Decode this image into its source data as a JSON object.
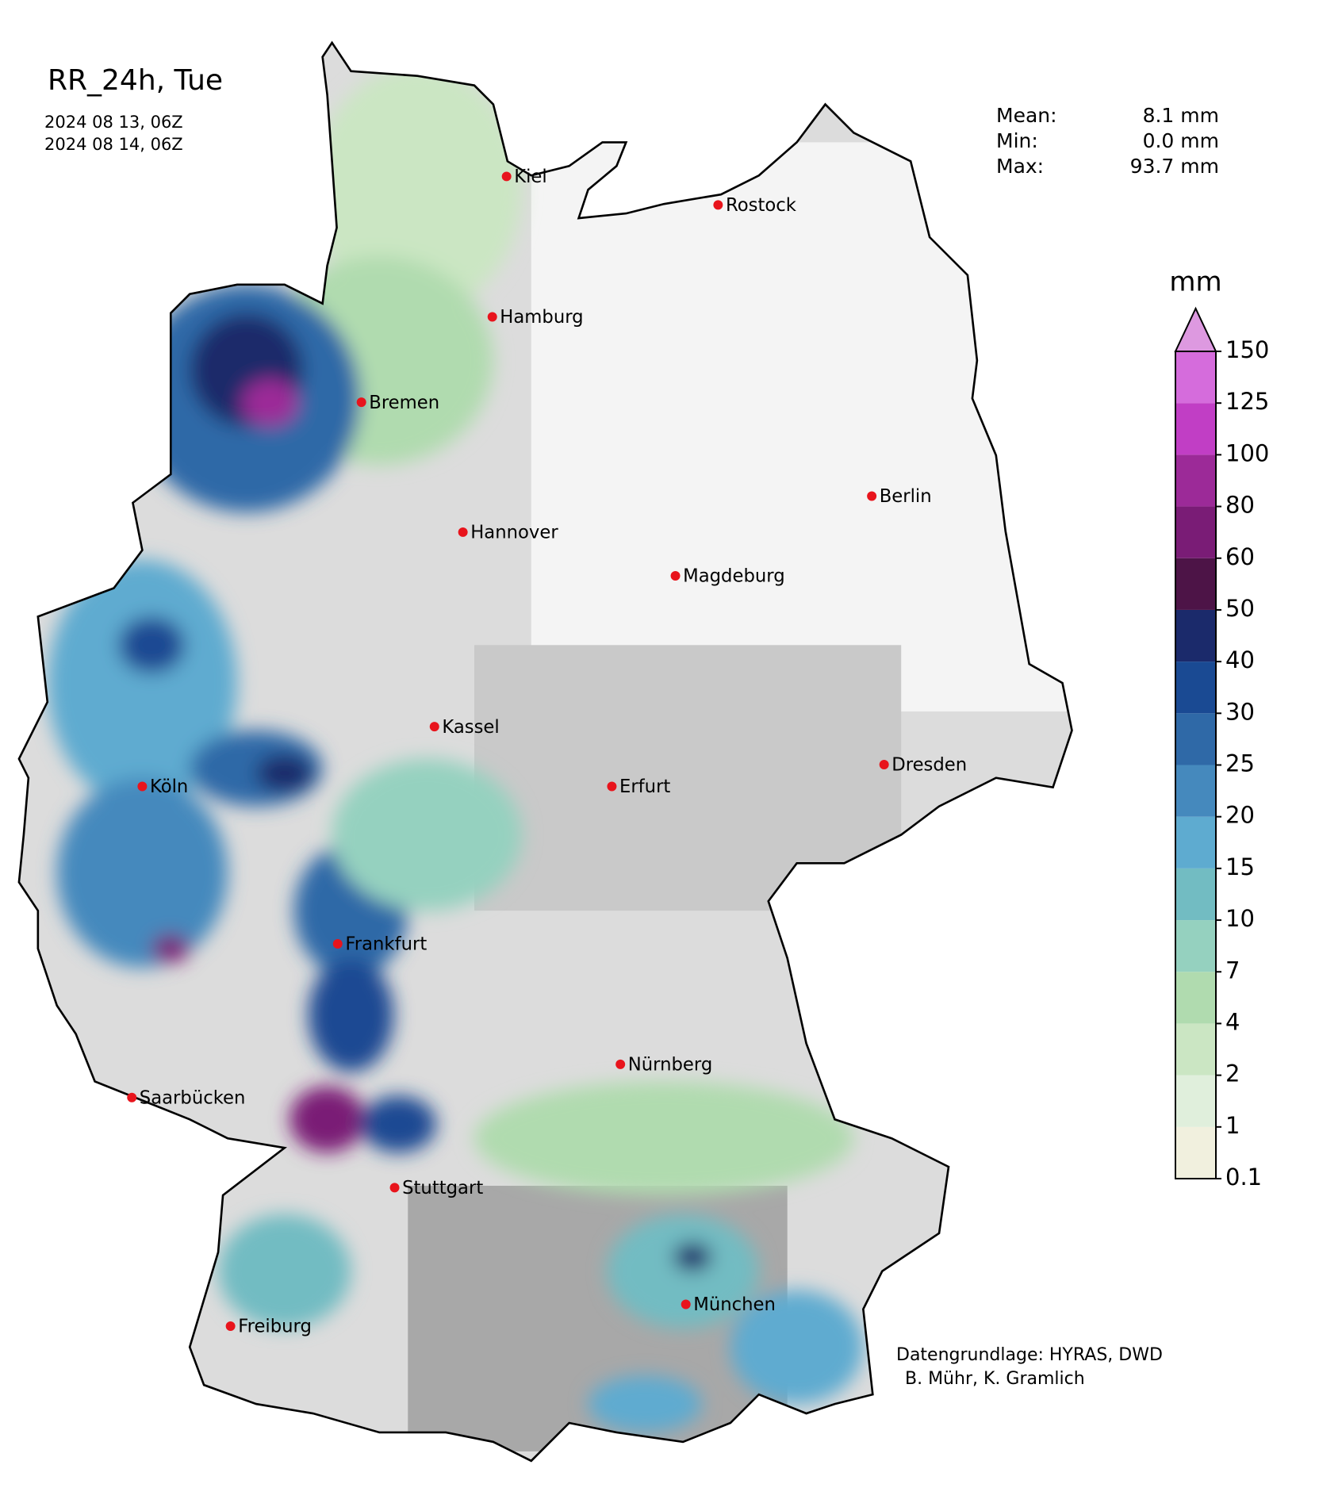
{
  "header": {
    "title": "RR_24h, Tue",
    "start": "2024 08 13, 06Z",
    "end": "2024 08 14, 06Z"
  },
  "stats": [
    {
      "label": "Mean:",
      "value": "8.1 mm"
    },
    {
      "label": "Min:",
      "value": "0.0 mm"
    },
    {
      "label": "Max:",
      "value": "93.7 mm"
    }
  ],
  "cities": [
    "Kiel",
    "Rostock",
    "Hamburg",
    "Bremen",
    "Berlin",
    "Hannover",
    "Magdeburg",
    "Kassel",
    "Dresden",
    "Köln",
    "Erfurt",
    "Frankfurt",
    "Nürnberg",
    "Saarbücken",
    "Stuttgart",
    "München",
    "Freiburg"
  ],
  "colorbar": {
    "unit": "mm",
    "ticks": [
      0.1,
      1,
      2,
      4,
      7,
      10,
      15,
      20,
      25,
      30,
      40,
      50,
      60,
      80,
      100,
      125,
      150
    ],
    "colors": [
      "#f1f0de",
      "#e0efdc",
      "#cbe6c3",
      "#b0dbaf",
      "#95d1bf",
      "#72bcc2",
      "#5eabd0",
      "#4589bd",
      "#2f69a7",
      "#1a4a93",
      "#1b2a6b",
      "#4d1447",
      "#7a1c76",
      "#9c2a98",
      "#c13ec5",
      "#d56cdc"
    ],
    "extend_color": "#dd99e0"
  },
  "credits": [
    "Datengrundlage: HYRAS, DWD",
    "B. Mühr, K. Gramlich"
  ]
}
